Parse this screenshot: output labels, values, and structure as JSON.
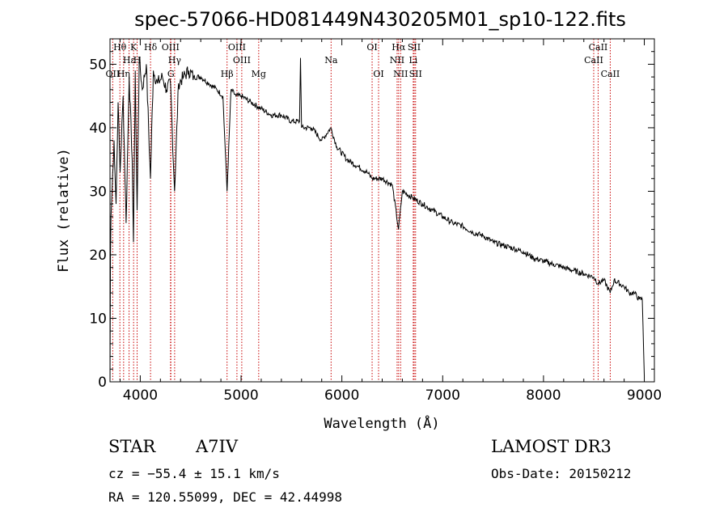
{
  "chart_data": {
    "type": "line",
    "title": "spec-57066-HD081449N430205M01_sp10-122.fits",
    "xlabel": "Wavelength (Å)",
    "ylabel": "Flux (relative)",
    "xlim": [
      3700,
      9100
    ],
    "ylim": [
      0,
      54
    ],
    "x_ticks": [
      4000,
      5000,
      6000,
      7000,
      8000,
      9000
    ],
    "y_ticks": [
      0,
      10,
      20,
      30,
      40,
      50
    ],
    "series": [
      {
        "name": "flux",
        "x": [
          3700,
          3705,
          3710,
          3720,
          3740,
          3760,
          3780,
          3800,
          3830,
          3860,
          3890,
          3920,
          3933,
          3950,
          3969,
          3990,
          4020,
          4060,
          4101,
          4130,
          4170,
          4220,
          4260,
          4300,
          4340,
          4380,
          4430,
          4480,
          4530,
          4600,
          4680,
          4760,
          4820,
          4861,
          4900,
          4950,
          5000,
          5100,
          5200,
          5300,
          5400,
          5500,
          5580,
          5590,
          5600,
          5700,
          5800,
          5890,
          5950,
          6050,
          6150,
          6250,
          6300,
          6400,
          6500,
          6562,
          6600,
          6700,
          6800,
          6900,
          7000,
          7100,
          7200,
          7300,
          7400,
          7500,
          7600,
          7700,
          7800,
          7900,
          8000,
          8100,
          8200,
          8300,
          8400,
          8498,
          8542,
          8600,
          8662,
          8700,
          8800,
          8850,
          8900,
          8950,
          8980,
          9000
        ],
        "y": [
          0,
          20,
          26,
          30,
          38,
          28,
          44,
          33,
          45,
          25,
          48,
          35,
          22,
          49,
          27,
          51,
          46,
          50,
          32,
          49,
          47,
          48,
          46,
          47,
          30,
          47,
          48,
          49,
          48,
          48,
          47,
          46,
          45,
          30,
          46,
          45,
          45,
          44,
          43,
          42,
          42,
          41,
          41,
          51,
          40,
          40,
          38,
          40,
          37,
          35,
          34,
          33,
          32,
          32,
          31,
          24,
          30,
          29,
          28,
          27,
          26,
          25,
          24.5,
          23.5,
          23,
          22,
          21.5,
          21,
          20.5,
          19.5,
          19,
          18.5,
          18,
          17.5,
          17,
          16.5,
          15.5,
          16,
          14,
          16,
          15,
          14,
          14,
          13,
          13,
          1
        ]
      }
    ],
    "lines": [
      {
        "label": "OII",
        "wavelength": 3727,
        "row": 3
      },
      {
        "label": "Hθ",
        "wavelength": 3798,
        "row": 1
      },
      {
        "label": "Hη",
        "wavelength": 3835,
        "row": 3
      },
      {
        "label": "Hε",
        "wavelength": 3889,
        "row": 2
      },
      {
        "label": "K",
        "wavelength": 3934,
        "row": 1
      },
      {
        "label": "H",
        "wavelength": 3969,
        "row": 2
      },
      {
        "label": "Hδ",
        "wavelength": 4102,
        "row": 1
      },
      {
        "label": "OIII",
        "wavelength": 4300,
        "row": 1
      },
      {
        "label": "Hγ",
        "wavelength": 4341,
        "row": 2
      },
      {
        "label": "G",
        "wavelength": 4304,
        "row": 3
      },
      {
        "label": "Hβ",
        "wavelength": 4861,
        "row": 3
      },
      {
        "label": "OIII",
        "wavelength": 4959,
        "row": 1
      },
      {
        "label": "OIII",
        "wavelength": 5007,
        "row": 2
      },
      {
        "label": "Mg",
        "wavelength": 5175,
        "row": 3
      },
      {
        "label": "Na",
        "wavelength": 5893,
        "row": 2
      },
      {
        "label": "OI",
        "wavelength": 6300,
        "row": 1
      },
      {
        "label": "OI",
        "wavelength": 6364,
        "row": 3
      },
      {
        "label": "Hα",
        "wavelength": 6563,
        "row": 1
      },
      {
        "label": "NII",
        "wavelength": 6548,
        "row": 2
      },
      {
        "label": "NII",
        "wavelength": 6583,
        "row": 3
      },
      {
        "label": "SII",
        "wavelength": 6717,
        "row": 1
      },
      {
        "label": "Li",
        "wavelength": 6708,
        "row": 2
      },
      {
        "label": "SII",
        "wavelength": 6731,
        "row": 3
      },
      {
        "label": "CaII",
        "wavelength": 8498,
        "row": 2
      },
      {
        "label": "CaII",
        "wavelength": 8542,
        "row": 1
      },
      {
        "label": "CaII",
        "wavelength": 8662,
        "row": 3
      }
    ]
  },
  "footer": {
    "class": "STAR",
    "subclass": "A7IV",
    "survey": "LAMOST DR3",
    "cz": "cz = −55.4 ± 15.1 km/s",
    "obs_date": "Obs-Date: 20150212",
    "coords": "RA = 120.55099, DEC =  42.44998"
  },
  "colors": {
    "line_marker": "#c80000",
    "spectrum": "#000000"
  }
}
